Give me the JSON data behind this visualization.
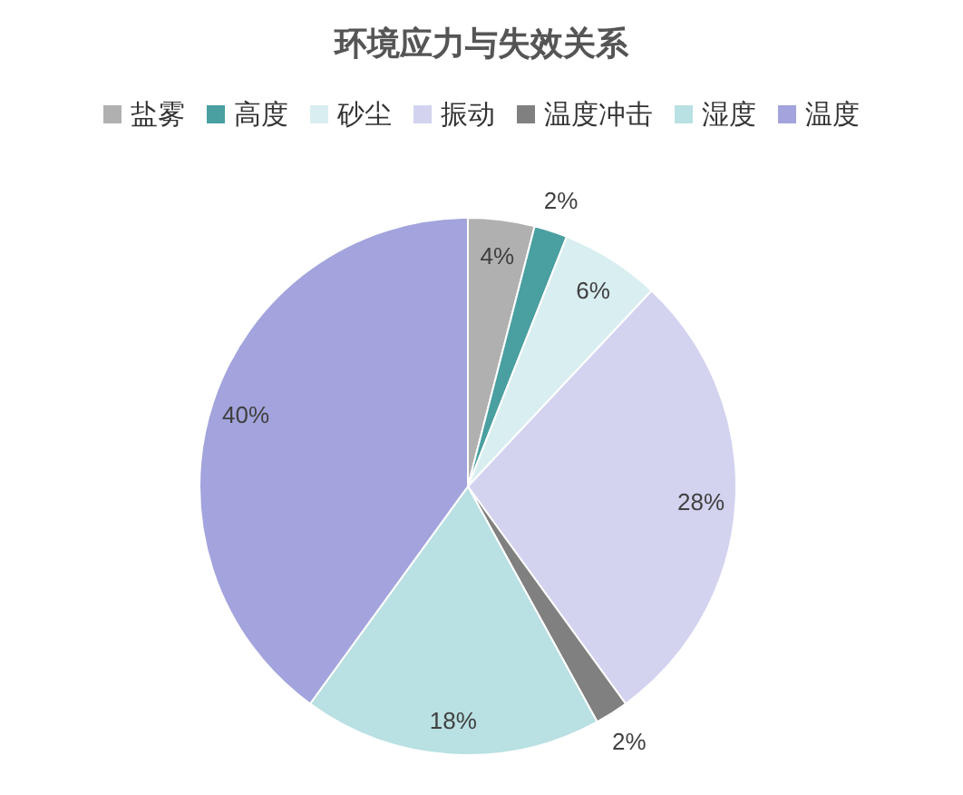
{
  "chart_data": {
    "type": "pie",
    "title": "环境应力与失效关系",
    "categories": [
      "盐雾",
      "高度",
      "砂尘",
      "振动",
      "温度冲击",
      "湿度",
      "温度"
    ],
    "values": [
      4,
      2,
      6,
      28,
      2,
      18,
      40
    ],
    "colors": [
      "#b0b0b0",
      "#4a9fa0",
      "#d9eef0",
      "#d3d3f0",
      "#808080",
      "#b9e0e2",
      "#a3a3dd"
    ],
    "value_labels": [
      "4%",
      "2%",
      "6%",
      "28%",
      "2%",
      "18%",
      "40%"
    ],
    "legend": "top"
  }
}
